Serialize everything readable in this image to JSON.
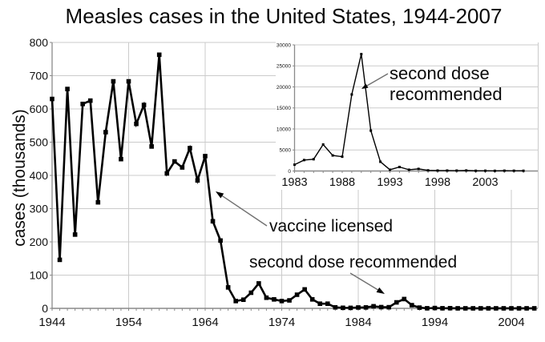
{
  "title": "Measles cases in the United States, 1944-2007",
  "colors": {
    "line": "#000000",
    "grid": "#cbcbcb",
    "axis": "#8a8a8a",
    "background": "#ffffff",
    "text": "#111111",
    "arrow_line": "#707070",
    "arrow_head": "#000000"
  },
  "chart_data": [
    {
      "type": "line",
      "name": "main-chart",
      "title": "Measles cases in the United States, 1944-2007",
      "xlabel": "",
      "ylabel": "cases (thousands)",
      "ylim": [
        0,
        800
      ],
      "yticks": [
        0,
        100,
        200,
        300,
        400,
        500,
        600,
        700,
        800
      ],
      "xticks": [
        1944,
        1954,
        1964,
        1974,
        1984,
        1994,
        2004
      ],
      "grid": "horizontal lines every 100, vertical lines at decades",
      "legend": "none",
      "x": [
        1944,
        1945,
        1946,
        1947,
        1948,
        1949,
        1950,
        1951,
        1952,
        1953,
        1954,
        1955,
        1956,
        1957,
        1958,
        1959,
        1960,
        1961,
        1962,
        1963,
        1964,
        1965,
        1966,
        1967,
        1968,
        1969,
        1970,
        1971,
        1972,
        1973,
        1974,
        1975,
        1976,
        1977,
        1978,
        1979,
        1980,
        1981,
        1982,
        1983,
        1984,
        1985,
        1986,
        1987,
        1988,
        1989,
        1990,
        1991,
        1992,
        1993,
        1994,
        1995,
        1996,
        1997,
        1998,
        1999,
        2000,
        2001,
        2002,
        2003,
        2004,
        2005,
        2006,
        2007
      ],
      "values": [
        630,
        146,
        660,
        222,
        615,
        625,
        319,
        530,
        683,
        449,
        683,
        555,
        612,
        487,
        763,
        406,
        442,
        424,
        482,
        385,
        458,
        262,
        204,
        63,
        22,
        26,
        47,
        75,
        32,
        27,
        22,
        24,
        41,
        57,
        27,
        14,
        14,
        3,
        1.7,
        1.5,
        2.6,
        2.8,
        6.3,
        3.7,
        3.4,
        18,
        28,
        9.6,
        2.2,
        0.3,
        1,
        0.3,
        0.5,
        0.1,
        0.1,
        0.1,
        0.1,
        0.1,
        0.1,
        0.1,
        0.1,
        0.1,
        0.1,
        0.1
      ],
      "annotations": [
        {
          "text": "vaccine licensed",
          "points_to_year": 1965
        },
        {
          "text": "second dose recommended",
          "points_to_year": 1989
        }
      ]
    },
    {
      "type": "line",
      "name": "inset-chart",
      "title": "",
      "xlabel": "",
      "ylabel": "",
      "ylim": [
        0,
        30000
      ],
      "yticks": [
        0,
        5000,
        10000,
        15000,
        20000,
        25000,
        30000
      ],
      "xticks": [
        1983,
        1988,
        1993,
        1998,
        2003
      ],
      "grid": "horizontal lines every 5000",
      "legend": "none",
      "x": [
        1983,
        1984,
        1985,
        1986,
        1987,
        1988,
        1989,
        1990,
        1991,
        1992,
        1993,
        1994,
        1995,
        1996,
        1997,
        1998,
        1999,
        2000,
        2001,
        2002,
        2003,
        2004,
        2005,
        2006,
        2007
      ],
      "values": [
        1500,
        2600,
        2800,
        6300,
        3700,
        3400,
        18200,
        27800,
        9600,
        2200,
        300,
        950,
        300,
        500,
        150,
        100,
        100,
        90,
        120,
        50,
        60,
        40,
        70,
        60,
        50
      ],
      "annotations": [
        {
          "text": "second dose\nrecommended",
          "points_to_year": 1989
        }
      ]
    }
  ]
}
